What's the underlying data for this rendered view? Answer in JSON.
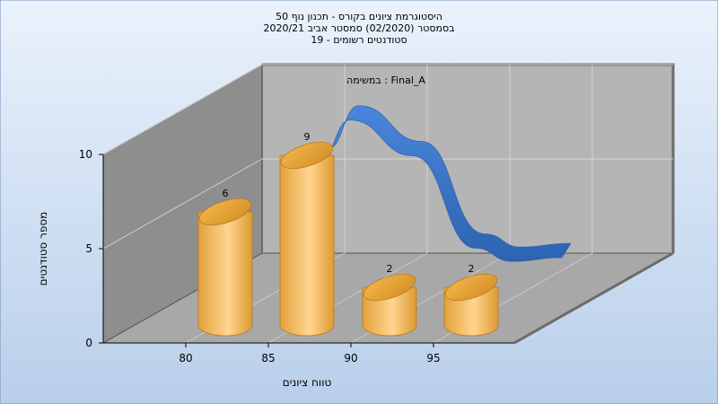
{
  "chart_data": {
    "type": "bar",
    "title": [
      "היסטוגרמת ציונים בקורס - תכנון נוף 50",
      "בסמסטר  (02/2020)  סמסטר אביב 2020/21",
      "סטודנטים רשומים - 19"
    ],
    "annotation": "במשימה : Final_A",
    "xlabel": "טווח ציונים",
    "ylabel": "מספר סטודנטים",
    "x_ticks": [
      "80",
      "85",
      "90",
      "95"
    ],
    "y_ticks": [
      "0",
      "5",
      "10"
    ],
    "ylim": [
      0,
      10
    ],
    "categories": [
      "80-85",
      "85-90",
      "90-95",
      "95-100"
    ],
    "values": [
      6,
      9,
      2,
      2
    ],
    "data_labels": [
      "6",
      "9",
      "2",
      "2"
    ],
    "trend_line": true,
    "grid": true,
    "colors": {
      "bar": "#E8A93E",
      "bar_light": "#FBD48A",
      "trend": "#3570C6",
      "wall_left": "#8C8C8C",
      "wall_back": "#B4B4B4",
      "floor": "#A6A6A6"
    }
  }
}
